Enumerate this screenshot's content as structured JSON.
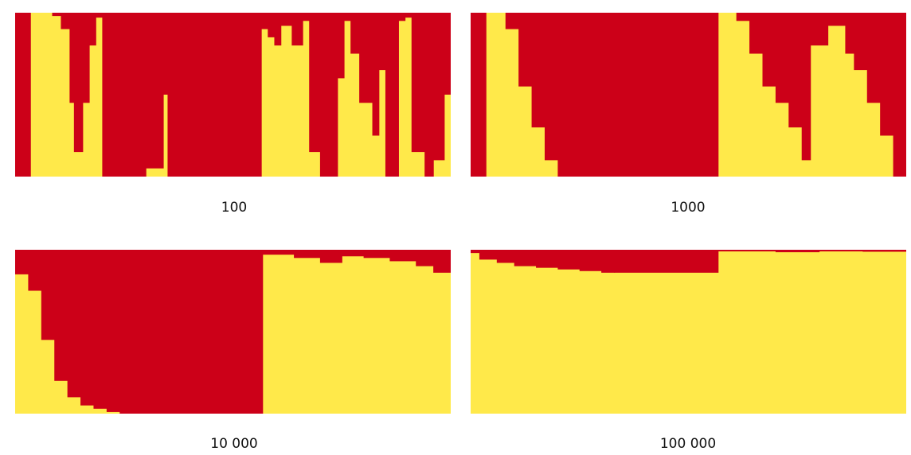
{
  "colors": {
    "red": "#cc0018",
    "yellow": "#ffe94a",
    "background": "#ffffff"
  },
  "chart_data": [
    {
      "type": "heatmap",
      "label": "100",
      "description_free": true,
      "columns": [
        {
          "x0": 0.0,
          "x1": 0.035,
          "red_to": 1.0
        },
        {
          "x0": 0.035,
          "x1": 0.06,
          "red_to": 0.0
        },
        {
          "x0": 0.06,
          "x1": 0.085,
          "red_to": 0.0
        },
        {
          "x0": 0.085,
          "x1": 0.105,
          "red_to": 0.02
        },
        {
          "x0": 0.105,
          "x1": 0.125,
          "red_to": 0.1
        },
        {
          "x0": 0.125,
          "x1": 0.135,
          "red_to": 0.55
        },
        {
          "x0": 0.135,
          "x1": 0.155,
          "red_to": 0.85
        },
        {
          "x0": 0.155,
          "x1": 0.17,
          "red_to": 0.55
        },
        {
          "x0": 0.17,
          "x1": 0.185,
          "red_to": 0.2
        },
        {
          "x0": 0.185,
          "x1": 0.2,
          "red_to": 0.03
        },
        {
          "x0": 0.2,
          "x1": 0.24,
          "red_to": 1.0
        },
        {
          "x0": 0.24,
          "x1": 0.3,
          "red_to": 1.0
        },
        {
          "x0": 0.3,
          "x1": 0.34,
          "red_to": 0.95
        },
        {
          "x0": 0.34,
          "x1": 0.35,
          "red_to": 0.5
        },
        {
          "x0": 0.35,
          "x1": 0.42,
          "red_to": 1.0
        },
        {
          "x0": 0.42,
          "x1": 0.5,
          "red_to": 1.0
        },
        {
          "x0": 0.5,
          "x1": 0.565,
          "red_to": 1.0
        },
        {
          "x0": 0.565,
          "x1": 0.58,
          "red_to": 0.1
        },
        {
          "x0": 0.58,
          "x1": 0.595,
          "red_to": 0.15
        },
        {
          "x0": 0.595,
          "x1": 0.61,
          "red_to": 0.2
        },
        {
          "x0": 0.61,
          "x1": 0.635,
          "red_to": 0.08
        },
        {
          "x0": 0.635,
          "x1": 0.66,
          "red_to": 0.2
        },
        {
          "x0": 0.66,
          "x1": 0.675,
          "red_to": 0.05
        },
        {
          "x0": 0.675,
          "x1": 0.7,
          "red_to": 0.85
        },
        {
          "x0": 0.7,
          "x1": 0.74,
          "red_to": 1.0
        },
        {
          "x0": 0.74,
          "x1": 0.755,
          "red_to": 0.4
        },
        {
          "x0": 0.755,
          "x1": 0.77,
          "red_to": 0.05
        },
        {
          "x0": 0.77,
          "x1": 0.79,
          "red_to": 0.25
        },
        {
          "x0": 0.79,
          "x1": 0.82,
          "red_to": 0.55
        },
        {
          "x0": 0.82,
          "x1": 0.835,
          "red_to": 0.75
        },
        {
          "x0": 0.835,
          "x1": 0.85,
          "red_to": 0.35
        },
        {
          "x0": 0.85,
          "x1": 0.88,
          "red_to": 1.0
        },
        {
          "x0": 0.88,
          "x1": 0.895,
          "red_to": 0.05
        },
        {
          "x0": 0.895,
          "x1": 0.91,
          "red_to": 0.03
        },
        {
          "x0": 0.91,
          "x1": 0.94,
          "red_to": 0.85
        },
        {
          "x0": 0.94,
          "x1": 0.96,
          "red_to": 1.0
        },
        {
          "x0": 0.96,
          "x1": 0.985,
          "red_to": 0.9
        },
        {
          "x0": 0.985,
          "x1": 1.0,
          "red_to": 0.5
        }
      ]
    },
    {
      "type": "heatmap",
      "label": "1000",
      "columns": [
        {
          "x0": 0.0,
          "x1": 0.035,
          "red_to": 1.0
        },
        {
          "x0": 0.035,
          "x1": 0.08,
          "red_to": 0.0
        },
        {
          "x0": 0.08,
          "x1": 0.11,
          "red_to": 0.1
        },
        {
          "x0": 0.11,
          "x1": 0.14,
          "red_to": 0.45
        },
        {
          "x0": 0.14,
          "x1": 0.17,
          "red_to": 0.7
        },
        {
          "x0": 0.17,
          "x1": 0.2,
          "red_to": 0.9
        },
        {
          "x0": 0.2,
          "x1": 0.23,
          "red_to": 1.0
        },
        {
          "x0": 0.23,
          "x1": 0.568,
          "red_to": 1.0
        },
        {
          "x0": 0.568,
          "x1": 0.61,
          "red_to": 0.0
        },
        {
          "x0": 0.61,
          "x1": 0.64,
          "red_to": 0.05
        },
        {
          "x0": 0.64,
          "x1": 0.67,
          "red_to": 0.25
        },
        {
          "x0": 0.67,
          "x1": 0.7,
          "red_to": 0.45
        },
        {
          "x0": 0.7,
          "x1": 0.73,
          "red_to": 0.55
        },
        {
          "x0": 0.73,
          "x1": 0.76,
          "red_to": 0.7
        },
        {
          "x0": 0.76,
          "x1": 0.78,
          "red_to": 0.9
        },
        {
          "x0": 0.78,
          "x1": 0.82,
          "red_to": 0.2
        },
        {
          "x0": 0.82,
          "x1": 0.86,
          "red_to": 0.08
        },
        {
          "x0": 0.86,
          "x1": 0.88,
          "red_to": 0.25
        },
        {
          "x0": 0.88,
          "x1": 0.91,
          "red_to": 0.35
        },
        {
          "x0": 0.91,
          "x1": 0.94,
          "red_to": 0.55
        },
        {
          "x0": 0.94,
          "x1": 0.97,
          "red_to": 0.75
        },
        {
          "x0": 0.97,
          "x1": 1.0,
          "red_to": 1.0
        }
      ]
    },
    {
      "type": "heatmap",
      "label": "10 000",
      "columns": [
        {
          "x0": 0.0,
          "x1": 0.03,
          "red_to": 0.15
        },
        {
          "x0": 0.03,
          "x1": 0.06,
          "red_to": 0.25
        },
        {
          "x0": 0.06,
          "x1": 0.09,
          "red_to": 0.55
        },
        {
          "x0": 0.09,
          "x1": 0.12,
          "red_to": 0.8
        },
        {
          "x0": 0.12,
          "x1": 0.15,
          "red_to": 0.9
        },
        {
          "x0": 0.15,
          "x1": 0.18,
          "red_to": 0.95
        },
        {
          "x0": 0.18,
          "x1": 0.21,
          "red_to": 0.97
        },
        {
          "x0": 0.21,
          "x1": 0.24,
          "red_to": 0.99
        },
        {
          "x0": 0.24,
          "x1": 0.568,
          "red_to": 1.0
        },
        {
          "x0": 0.568,
          "x1": 0.64,
          "red_to": 0.03
        },
        {
          "x0": 0.64,
          "x1": 0.7,
          "red_to": 0.05
        },
        {
          "x0": 0.7,
          "x1": 0.75,
          "red_to": 0.08
        },
        {
          "x0": 0.75,
          "x1": 0.8,
          "red_to": 0.04
        },
        {
          "x0": 0.8,
          "x1": 0.86,
          "red_to": 0.05
        },
        {
          "x0": 0.86,
          "x1": 0.92,
          "red_to": 0.07
        },
        {
          "x0": 0.92,
          "x1": 0.96,
          "red_to": 0.1
        },
        {
          "x0": 0.96,
          "x1": 1.0,
          "red_to": 0.14
        }
      ]
    },
    {
      "type": "heatmap",
      "label": "100 000",
      "columns": [
        {
          "x0": 0.0,
          "x1": 0.02,
          "red_to": 0.02
        },
        {
          "x0": 0.02,
          "x1": 0.06,
          "red_to": 0.06
        },
        {
          "x0": 0.06,
          "x1": 0.1,
          "red_to": 0.08
        },
        {
          "x0": 0.1,
          "x1": 0.15,
          "red_to": 0.1
        },
        {
          "x0": 0.15,
          "x1": 0.2,
          "red_to": 0.11
        },
        {
          "x0": 0.2,
          "x1": 0.25,
          "red_to": 0.12
        },
        {
          "x0": 0.25,
          "x1": 0.3,
          "red_to": 0.13
        },
        {
          "x0": 0.3,
          "x1": 0.33,
          "red_to": 0.14
        },
        {
          "x0": 0.33,
          "x1": 0.568,
          "red_to": 0.14
        },
        {
          "x0": 0.568,
          "x1": 0.7,
          "red_to": 0.01
        },
        {
          "x0": 0.7,
          "x1": 0.8,
          "red_to": 0.015
        },
        {
          "x0": 0.8,
          "x1": 0.9,
          "red_to": 0.01
        },
        {
          "x0": 0.9,
          "x1": 1.0,
          "red_to": 0.012
        }
      ]
    }
  ]
}
